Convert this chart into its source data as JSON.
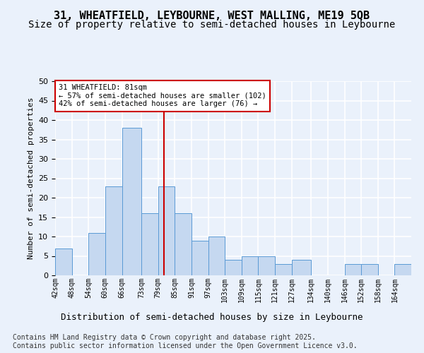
{
  "title1": "31, WHEATFIELD, LEYBOURNE, WEST MALLING, ME19 5QB",
  "title2": "Size of property relative to semi-detached houses in Leybourne",
  "xlabel": "Distribution of semi-detached houses by size in Leybourne",
  "ylabel": "Number of semi-detached properties",
  "footer": "Contains HM Land Registry data © Crown copyright and database right 2025.\nContains public sector information licensed under the Open Government Licence v3.0.",
  "bar_edges": [
    42,
    48,
    54,
    60,
    66,
    73,
    79,
    85,
    91,
    97,
    103,
    109,
    115,
    121,
    127,
    134,
    140,
    146,
    152,
    158,
    164,
    170
  ],
  "bar_labels": [
    "42sqm",
    "48sqm",
    "54sqm",
    "60sqm",
    "66sqm",
    "73sqm",
    "79sqm",
    "85sqm",
    "91sqm",
    "97sqm",
    "103sqm",
    "109sqm",
    "115sqm",
    "121sqm",
    "127sqm",
    "134sqm",
    "140sqm",
    "146sqm",
    "152sqm",
    "158sqm",
    "164sqm"
  ],
  "bar_heights": [
    7,
    0,
    11,
    23,
    38,
    16,
    23,
    16,
    9,
    10,
    4,
    5,
    5,
    3,
    4,
    0,
    0,
    3,
    3,
    0,
    3
  ],
  "bar_color": "#c5d8f0",
  "bar_edgecolor": "#5a9ad5",
  "reference_line_x": 81,
  "annotation_title": "31 WHEATFIELD: 81sqm",
  "annotation_line1": "← 57% of semi-detached houses are smaller (102)",
  "annotation_line2": "42% of semi-detached houses are larger (76) →",
  "annotation_box_color": "#ffffff",
  "annotation_box_edgecolor": "#cc0000",
  "reference_line_color": "#cc0000",
  "ylim": [
    0,
    50
  ],
  "yticks": [
    0,
    5,
    10,
    15,
    20,
    25,
    30,
    35,
    40,
    45,
    50
  ],
  "background_color": "#eaf1fb",
  "axes_background": "#eaf1fb",
  "grid_color": "#ffffff",
  "title1_fontsize": 11,
  "title2_fontsize": 10,
  "xlabel_fontsize": 9,
  "ylabel_fontsize": 8,
  "footer_fontsize": 7,
  "tick_fontsize": 8,
  "xtick_fontsize": 7
}
